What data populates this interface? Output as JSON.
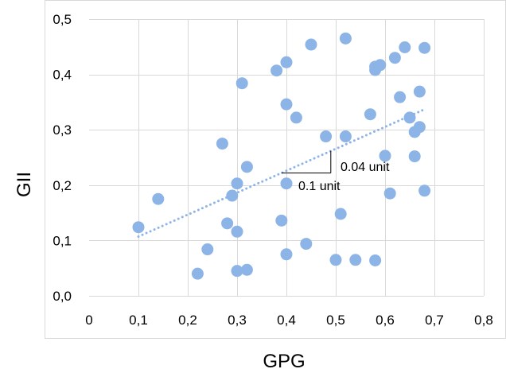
{
  "chart_data": {
    "type": "scatter",
    "xlabel": "GPG",
    "ylabel": "GII",
    "xlim": [
      0,
      0.8
    ],
    "ylim": [
      0,
      0.5
    ],
    "grid": true,
    "x_ticks": [
      "0",
      "0,1",
      "0,2",
      "0,3",
      "0,4",
      "0,5",
      "0,6",
      "0,7",
      "0,8"
    ],
    "y_ticks": [
      "0,0",
      "0,1",
      "0,2",
      "0,3",
      "0,4",
      "0,5"
    ],
    "marker_color": "#8db4e6",
    "trendline": {
      "style": "dotted linear",
      "color": "#8db4e6",
      "x": [
        0.1,
        0.68
      ],
      "y": [
        0.107,
        0.337
      ]
    },
    "annotations": [
      {
        "text": "0.04 unit"
      },
      {
        "text": "0.1 unit"
      }
    ],
    "points": [
      {
        "x": 0.1,
        "y": 0.124
      },
      {
        "x": 0.14,
        "y": 0.175
      },
      {
        "x": 0.22,
        "y": 0.04
      },
      {
        "x": 0.24,
        "y": 0.084
      },
      {
        "x": 0.27,
        "y": 0.275
      },
      {
        "x": 0.28,
        "y": 0.131
      },
      {
        "x": 0.29,
        "y": 0.181
      },
      {
        "x": 0.3,
        "y": 0.203
      },
      {
        "x": 0.3,
        "y": 0.116
      },
      {
        "x": 0.3,
        "y": 0.045
      },
      {
        "x": 0.31,
        "y": 0.384
      },
      {
        "x": 0.32,
        "y": 0.233
      },
      {
        "x": 0.32,
        "y": 0.047
      },
      {
        "x": 0.38,
        "y": 0.407
      },
      {
        "x": 0.39,
        "y": 0.136
      },
      {
        "x": 0.4,
        "y": 0.422
      },
      {
        "x": 0.4,
        "y": 0.346
      },
      {
        "x": 0.4,
        "y": 0.203
      },
      {
        "x": 0.4,
        "y": 0.075
      },
      {
        "x": 0.42,
        "y": 0.322
      },
      {
        "x": 0.44,
        "y": 0.094
      },
      {
        "x": 0.45,
        "y": 0.454
      },
      {
        "x": 0.48,
        "y": 0.288
      },
      {
        "x": 0.5,
        "y": 0.065
      },
      {
        "x": 0.51,
        "y": 0.148
      },
      {
        "x": 0.52,
        "y": 0.465
      },
      {
        "x": 0.52,
        "y": 0.288
      },
      {
        "x": 0.54,
        "y": 0.065
      },
      {
        "x": 0.57,
        "y": 0.328
      },
      {
        "x": 0.58,
        "y": 0.414
      },
      {
        "x": 0.58,
        "y": 0.408
      },
      {
        "x": 0.58,
        "y": 0.064
      },
      {
        "x": 0.59,
        "y": 0.417
      },
      {
        "x": 0.6,
        "y": 0.253
      },
      {
        "x": 0.61,
        "y": 0.185
      },
      {
        "x": 0.62,
        "y": 0.43
      },
      {
        "x": 0.63,
        "y": 0.359
      },
      {
        "x": 0.64,
        "y": 0.449
      },
      {
        "x": 0.65,
        "y": 0.322
      },
      {
        "x": 0.66,
        "y": 0.296
      },
      {
        "x": 0.66,
        "y": 0.252
      },
      {
        "x": 0.67,
        "y": 0.369
      },
      {
        "x": 0.67,
        "y": 0.305
      },
      {
        "x": 0.68,
        "y": 0.448
      },
      {
        "x": 0.68,
        "y": 0.19
      }
    ]
  }
}
